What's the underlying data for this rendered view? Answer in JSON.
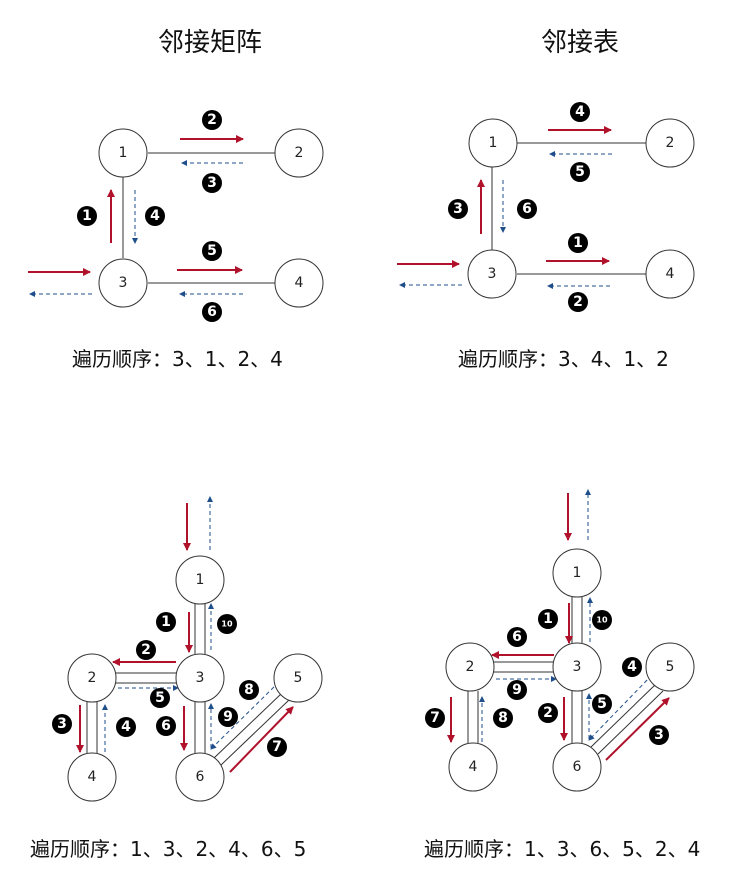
{
  "titles": {
    "matrix": "邻接矩阵",
    "list": "邻接表"
  },
  "orders": {
    "matrix_top": "遍历顺序：3、1、2、4",
    "list_top": "遍历顺序：3、4、1、2",
    "matrix_bottom": "遍历顺序：1、3、2、4、6、5",
    "list_bottom": "遍历顺序：1、3、6、5、2、4"
  },
  "colors": {
    "forward": "#b0122b",
    "backtrack": "#1f4f8b"
  },
  "graphs": [
    {
      "id": "matrix_top",
      "nodes": [
        "1",
        "2",
        "3",
        "4"
      ],
      "steps": [
        "1",
        "2",
        "3",
        "4",
        "5",
        "6"
      ]
    },
    {
      "id": "list_top",
      "nodes": [
        "1",
        "2",
        "3",
        "4"
      ],
      "steps": [
        "1",
        "2",
        "3",
        "4",
        "5",
        "6"
      ]
    },
    {
      "id": "matrix_bottom",
      "nodes": [
        "1",
        "2",
        "3",
        "4",
        "5",
        "6"
      ],
      "steps": [
        "1",
        "2",
        "3",
        "4",
        "5",
        "6",
        "7",
        "8",
        "9",
        "10"
      ]
    },
    {
      "id": "list_bottom",
      "nodes": [
        "1",
        "2",
        "3",
        "4",
        "5",
        "6"
      ],
      "steps": [
        "1",
        "2",
        "3",
        "4",
        "5",
        "6",
        "7",
        "8",
        "9",
        "10"
      ]
    }
  ]
}
